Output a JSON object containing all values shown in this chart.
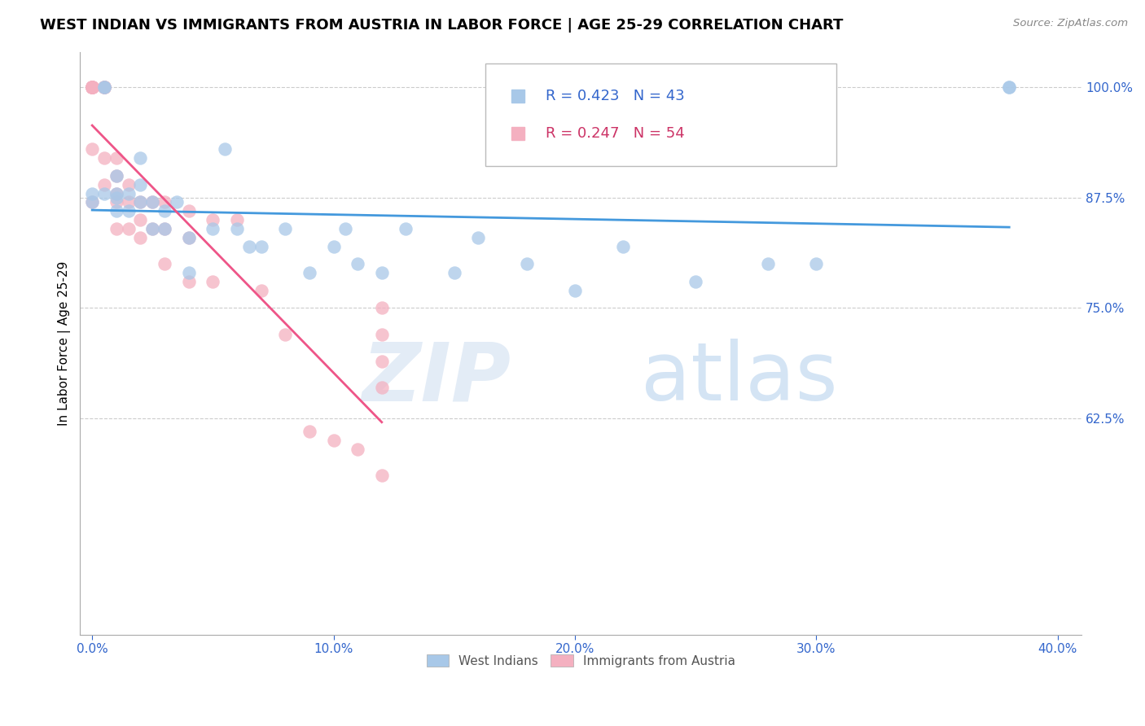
{
  "title": "WEST INDIAN VS IMMIGRANTS FROM AUSTRIA IN LABOR FORCE | AGE 25-29 CORRELATION CHART",
  "source": "Source: ZipAtlas.com",
  "ylabel": "In Labor Force | Age 25-29",
  "x_tick_labels": [
    "0.0%",
    "10.0%",
    "20.0%",
    "30.0%",
    "40.0%"
  ],
  "x_tick_values": [
    0.0,
    0.1,
    0.2,
    0.3,
    0.4
  ],
  "y_tick_labels_right": [
    "100.0%",
    "87.5%",
    "75.0%",
    "62.5%"
  ],
  "y_tick_values": [
    1.0,
    0.875,
    0.75,
    0.625
  ],
  "xlim": [
    -0.005,
    0.41
  ],
  "ylim": [
    0.38,
    1.04
  ],
  "blue_color": "#a8c8e8",
  "pink_color": "#f4b0c0",
  "blue_line_color": "#4499dd",
  "pink_line_color": "#ee5588",
  "grid_color": "#cccccc",
  "title_fontsize": 13,
  "label_fontsize": 11,
  "tick_fontsize": 11,
  "axis_color": "#3366cc",
  "legend_r_color_blue": "#3366cc",
  "legend_r_color_pink": "#cc3366",
  "watermark_color": "#ddeeff",
  "blue_x": [
    0.0,
    0.0,
    0.005,
    0.005,
    0.005,
    0.01,
    0.01,
    0.01,
    0.01,
    0.015,
    0.015,
    0.02,
    0.02,
    0.02,
    0.025,
    0.025,
    0.03,
    0.03,
    0.035,
    0.04,
    0.04,
    0.05,
    0.055,
    0.06,
    0.065,
    0.07,
    0.08,
    0.09,
    0.1,
    0.105,
    0.11,
    0.12,
    0.13,
    0.15,
    0.16,
    0.18,
    0.2,
    0.22,
    0.25,
    0.28,
    0.3,
    0.38,
    0.38
  ],
  "blue_y": [
    0.88,
    0.87,
    1.0,
    1.0,
    0.88,
    0.88,
    0.86,
    0.875,
    0.9,
    0.86,
    0.88,
    0.87,
    0.89,
    0.92,
    0.84,
    0.87,
    0.84,
    0.86,
    0.87,
    0.79,
    0.83,
    0.84,
    0.93,
    0.84,
    0.82,
    0.82,
    0.84,
    0.79,
    0.82,
    0.84,
    0.8,
    0.79,
    0.84,
    0.79,
    0.83,
    0.8,
    0.77,
    0.82,
    0.78,
    0.8,
    0.8,
    1.0,
    1.0
  ],
  "pink_x": [
    0.0,
    0.0,
    0.0,
    0.0,
    0.0,
    0.0,
    0.0,
    0.0,
    0.0,
    0.0,
    0.0,
    0.0,
    0.0,
    0.0,
    0.005,
    0.005,
    0.005,
    0.005,
    0.005,
    0.005,
    0.005,
    0.005,
    0.01,
    0.01,
    0.01,
    0.01,
    0.01,
    0.015,
    0.015,
    0.015,
    0.02,
    0.02,
    0.02,
    0.025,
    0.025,
    0.03,
    0.03,
    0.03,
    0.04,
    0.04,
    0.04,
    0.05,
    0.05,
    0.06,
    0.07,
    0.08,
    0.09,
    0.1,
    0.11,
    0.12,
    0.12,
    0.12,
    0.12,
    0.12
  ],
  "pink_y": [
    1.0,
    1.0,
    1.0,
    1.0,
    1.0,
    1.0,
    1.0,
    1.0,
    1.0,
    1.0,
    1.0,
    1.0,
    0.93,
    0.87,
    1.0,
    1.0,
    1.0,
    1.0,
    1.0,
    1.0,
    0.92,
    0.89,
    0.92,
    0.9,
    0.88,
    0.87,
    0.84,
    0.89,
    0.87,
    0.84,
    0.87,
    0.85,
    0.83,
    0.87,
    0.84,
    0.87,
    0.84,
    0.8,
    0.86,
    0.83,
    0.78,
    0.85,
    0.78,
    0.85,
    0.77,
    0.72,
    0.61,
    0.6,
    0.59,
    0.56,
    0.75,
    0.72,
    0.69,
    0.66
  ],
  "watermark_zip": "ZIP",
  "watermark_atlas": "atlas"
}
